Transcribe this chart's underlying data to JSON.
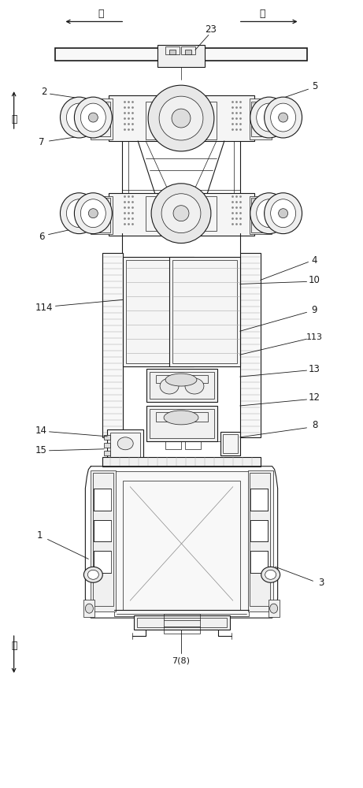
{
  "background_color": "#ffffff",
  "figure_width": 4.61,
  "figure_height": 10.0,
  "dark": "#1a1a1a",
  "mid": "#555555",
  "light": "#aaaaaa",
  "labels": {
    "right": "右",
    "left": "左",
    "rear": "后",
    "front": "前",
    "n23": "23",
    "n2": "2",
    "n7": "7",
    "n6": "6",
    "n5": "5",
    "n4": "4",
    "n10": "10",
    "n9": "9",
    "n113": "113",
    "n13": "13",
    "n12": "12",
    "n8": "8",
    "n114": "114",
    "n14": "14",
    "n15": "15",
    "n1": "1",
    "n78": "7(8)",
    "n3": "3"
  }
}
